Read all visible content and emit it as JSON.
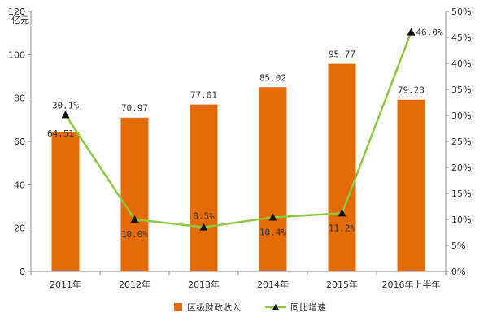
{
  "chart_data": {
    "type": "bar",
    "categories": [
      "2011年",
      "2012年",
      "2013年",
      "2014年",
      "2015年",
      "2016年上半年"
    ],
    "series": [
      {
        "name": "区级财政收入",
        "type": "bar",
        "axis": "left",
        "values": [
          64.51,
          70.97,
          77.01,
          85.02,
          95.77,
          79.23
        ],
        "labels": [
          "64.51",
          "70.97",
          "77.01",
          "85.02",
          "95.77",
          "79.23"
        ],
        "color": "#e36c09"
      },
      {
        "name": "同比增速",
        "type": "line",
        "axis": "right",
        "values": [
          30.1,
          10.0,
          8.5,
          10.4,
          11.2,
          46.0
        ],
        "labels": [
          "30.1%",
          "10.0%",
          "8.5%",
          "10.4%",
          "11.2%",
          "46.0%"
        ],
        "color": "#8dc63f",
        "marker": "triangle"
      }
    ],
    "yaxis_left": {
      "unit": "亿元",
      "range": [
        0,
        120
      ],
      "ticks": [
        "0",
        "20",
        "40",
        "60",
        "80",
        "100",
        "120"
      ]
    },
    "yaxis_right": {
      "range": [
        0,
        50
      ],
      "ticks": [
        "0%",
        "5%",
        "10%",
        "15%",
        "20%",
        "25%",
        "30%",
        "35%",
        "40%",
        "45%",
        "50%"
      ]
    },
    "grid": false,
    "legend_position": "bottom"
  }
}
